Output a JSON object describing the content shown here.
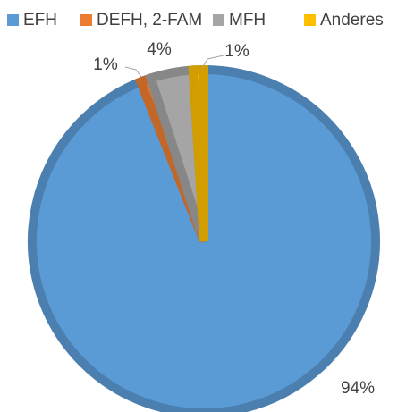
{
  "chart_data": {
    "type": "pie",
    "categories": [
      "EFH",
      "DEFH, 2-FAM",
      "MFH",
      "Anderes"
    ],
    "values": [
      94,
      1,
      4,
      1
    ],
    "value_labels": [
      "94%",
      "1%",
      "4%",
      "1%"
    ],
    "colors": [
      "#5b9bd5",
      "#ed7d31",
      "#a5a5a5",
      "#ffc000"
    ],
    "legend": "top"
  }
}
